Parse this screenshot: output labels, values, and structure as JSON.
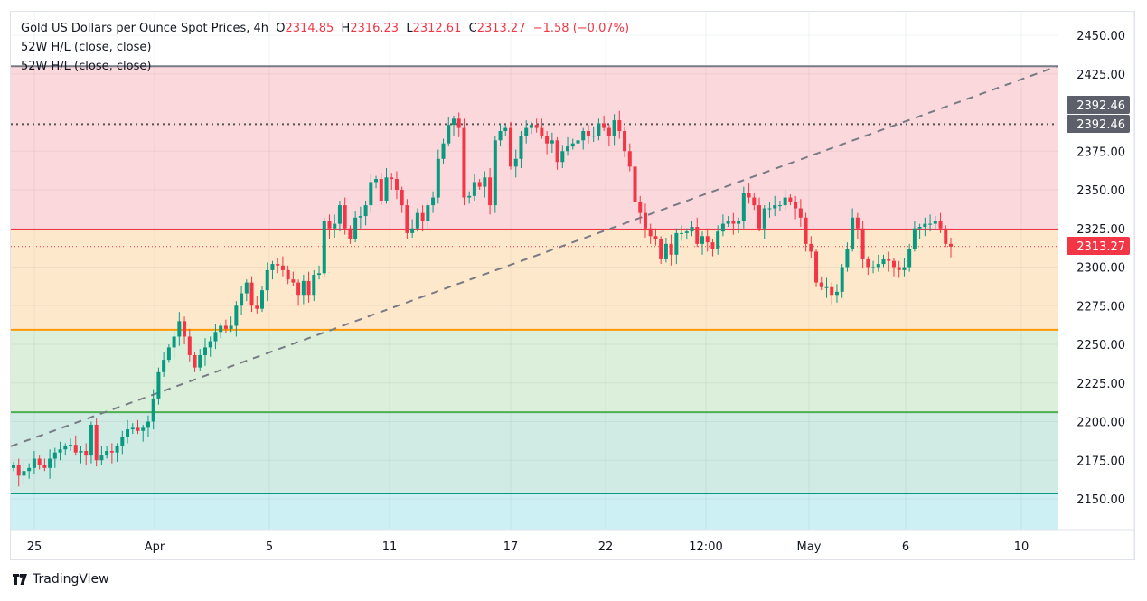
{
  "header": {
    "symbol": "Gold US Dollars per Ounce Spot Prices, 4h",
    "o_label": "O",
    "o": "2314.85",
    "h_label": "H",
    "h": "2316.23",
    "l_label": "L",
    "l": "2312.61",
    "c_label": "C",
    "c": "2313.27",
    "change": "−1.58 (−0.07%)",
    "indicator1": "52W H/L (close, close)",
    "indicator2": "52W H/L (close, close)"
  },
  "brand": "TradingView",
  "colors": {
    "up": "#089981",
    "down": "#f23645",
    "pink_band": "#fbd8db",
    "peach_band": "#fee8cc",
    "green_band": "#dcefda",
    "teal_band": "#d0eae4",
    "cyan_band": "#cdf0f4"
  },
  "chart_data": {
    "type": "candlestick",
    "timeframe": "4h",
    "ylim": [
      2130,
      2460
    ],
    "y_ticks": [
      "2450.00",
      "2425.00",
      "2375.00",
      "2350.00",
      "2325.00",
      "2300.00",
      "2275.00",
      "2250.00",
      "2225.00",
      "2200.00",
      "2175.00",
      "2150.00"
    ],
    "x_ticks": [
      "25",
      "Apr",
      "5",
      "11",
      "17",
      "22",
      "12:00",
      "May",
      "6",
      "10"
    ],
    "price_labels": [
      {
        "text": "2392.46",
        "value": 2392.46
      },
      {
        "text": "2392.46",
        "value": 2392.46
      },
      {
        "text": "2313.27",
        "value": 2313.27
      }
    ],
    "levels": [
      {
        "value": 2430,
        "color": "#787b86"
      },
      {
        "value": 2392.46,
        "color": "#555",
        "style": "dotted"
      },
      {
        "value": 2324.3,
        "color": "#f23645"
      },
      {
        "value": 2259.4,
        "color": "#ff9800"
      },
      {
        "value": 2206.1,
        "color": "#4caf50"
      },
      {
        "value": 2153.5,
        "color": "#089981"
      }
    ],
    "trendline": {
      "from": 2184,
      "to": 2430,
      "style": "dashed",
      "color": "#787b86"
    },
    "first_open": 2170,
    "closes": [
      2172,
      2165,
      2168,
      2170,
      2176,
      2172,
      2170,
      2176,
      2180,
      2182,
      2184,
      2185,
      2180,
      2181,
      2178,
      2198,
      2175,
      2178,
      2181,
      2180,
      2184,
      2190,
      2195,
      2196,
      2194,
      2196,
      2200,
      2215,
      2232,
      2240,
      2248,
      2255,
      2265,
      2255,
      2243,
      2235,
      2243,
      2248,
      2252,
      2258,
      2262,
      2260,
      2262,
      2275,
      2283,
      2290,
      2275,
      2273,
      2285,
      2298,
      2302,
      2301,
      2298,
      2292,
      2290,
      2282,
      2291,
      2282,
      2295,
      2296,
      2330,
      2325,
      2328,
      2340,
      2325,
      2318,
      2332,
      2333,
      2340,
      2355,
      2357,
      2343,
      2358,
      2357,
      2350,
      2340,
      2322,
      2325,
      2335,
      2330,
      2340,
      2345,
      2370,
      2380,
      2392,
      2396,
      2390,
      2345,
      2346,
      2355,
      2352,
      2358,
      2340,
      2382,
      2388,
      2390,
      2365,
      2370,
      2385,
      2390,
      2392,
      2390,
      2385,
      2380,
      2382,
      2368,
      2375,
      2378,
      2380,
      2382,
      2388,
      2385,
      2385,
      2393,
      2390,
      2385,
      2395,
      2388,
      2375,
      2365,
      2342,
      2335,
      2325,
      2320,
      2318,
      2305,
      2315,
      2308,
      2322,
      2322,
      2323,
      2326,
      2315,
      2320,
      2316,
      2312,
      2323,
      2328,
      2330,
      2328,
      2330,
      2348,
      2345,
      2340,
      2325,
      2338,
      2338,
      2340,
      2340,
      2345,
      2342,
      2338,
      2332,
      2315,
      2310,
      2290,
      2287,
      2287,
      2282,
      2284,
      2300,
      2312,
      2332,
      2325,
      2305,
      2300,
      2300,
      2302,
      2305,
      2304,
      2300,
      2298,
      2300,
      2312,
      2325,
      2326,
      2328,
      2328,
      2330,
      2325,
      2315,
      2313.27
    ]
  }
}
